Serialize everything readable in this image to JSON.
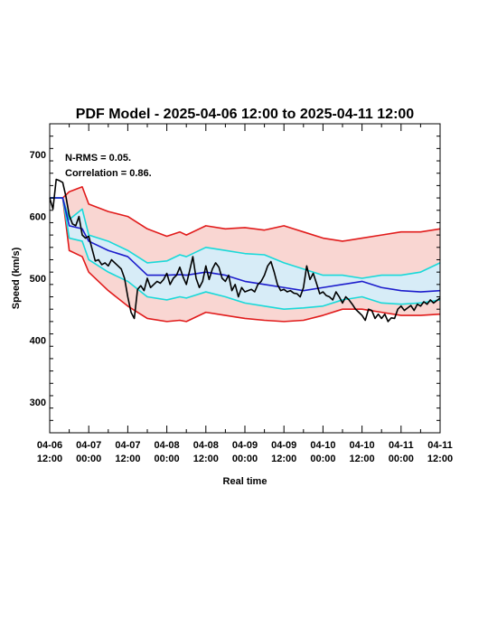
{
  "chart_data": {
    "type": "line",
    "title": "PDF Model - 2025-04-06 12:00 to 2025-04-11 12:00",
    "xlabel": "Real time",
    "ylabel": "Speed (km/s)",
    "annotations": [
      "N-RMS = 0.05.",
      "Correlation = 0.86."
    ],
    "ylim": [
      250,
      750
    ],
    "y_ticks": [
      300,
      400,
      500,
      600,
      700
    ],
    "x_ticks": [
      {
        "l1": "04-06",
        "l2": "12:00"
      },
      {
        "l1": "04-07",
        "l2": "00:00"
      },
      {
        "l1": "04-07",
        "l2": "12:00"
      },
      {
        "l1": "04-08",
        "l2": "00:00"
      },
      {
        "l1": "04-08",
        "l2": "12:00"
      },
      {
        "l1": "04-09",
        "l2": "00:00"
      },
      {
        "l1": "04-09",
        "l2": "12:00"
      },
      {
        "l1": "04-10",
        "l2": "00:00"
      },
      {
        "l1": "04-10",
        "l2": "12:00"
      },
      {
        "l1": "04-11",
        "l2": "00:00"
      },
      {
        "l1": "04-11",
        "l2": "12:00"
      }
    ],
    "x_hours": [
      0,
      4,
      6,
      10,
      12,
      18,
      24,
      30,
      36,
      40,
      42,
      48,
      54,
      60,
      66,
      72,
      78,
      84,
      90,
      96,
      102,
      108,
      114,
      120
    ],
    "upper_band": [
      630,
      630,
      640,
      648,
      620,
      608,
      600,
      580,
      568,
      575,
      570,
      585,
      580,
      582,
      578,
      585,
      575,
      565,
      560,
      565,
      570,
      575,
      575,
      580
    ],
    "upper_mid": [
      630,
      630,
      595,
      612,
      570,
      560,
      545,
      525,
      528,
      538,
      535,
      550,
      545,
      540,
      538,
      525,
      515,
      505,
      505,
      500,
      505,
      505,
      510,
      525
    ],
    "median": [
      630,
      630,
      585,
      580,
      560,
      545,
      535,
      505,
      505,
      506,
      505,
      510,
      505,
      495,
      490,
      485,
      480,
      485,
      490,
      495,
      485,
      480,
      478,
      480
    ],
    "lower_mid": [
      630,
      630,
      565,
      560,
      530,
      510,
      495,
      470,
      465,
      470,
      468,
      478,
      470,
      460,
      455,
      450,
      452,
      455,
      465,
      470,
      460,
      458,
      460,
      465
    ],
    "lower_band": [
      630,
      630,
      545,
      535,
      510,
      480,
      455,
      435,
      430,
      432,
      430,
      445,
      440,
      435,
      432,
      430,
      432,
      440,
      450,
      450,
      445,
      440,
      440,
      442
    ],
    "observed": {
      "x_hours": [
        0,
        1,
        2,
        3,
        4,
        5,
        6,
        7,
        8,
        9,
        10,
        11,
        12,
        13,
        14,
        15,
        16,
        17,
        18,
        19,
        20,
        21,
        22,
        23,
        24,
        25,
        26,
        27,
        28,
        29,
        30,
        31,
        32,
        33,
        34,
        35,
        36,
        37,
        38,
        39,
        40,
        41,
        42,
        43,
        44,
        45,
        46,
        47,
        48,
        49,
        50,
        51,
        52,
        53,
        54,
        55,
        56,
        57,
        58,
        59,
        60,
        61,
        62,
        63,
        64,
        65,
        66,
        67,
        68,
        69,
        70,
        71,
        72,
        73,
        74,
        75,
        76,
        77,
        78,
        79,
        80,
        81,
        82,
        83,
        84,
        85,
        86,
        87,
        88,
        89,
        90,
        91,
        92,
        93,
        94,
        95,
        96,
        97,
        98,
        99,
        100,
        101,
        102,
        103,
        104,
        105,
        106,
        107,
        108,
        109,
        110,
        111,
        112,
        113,
        114,
        115,
        116,
        117,
        118,
        119,
        120
      ],
      "values": [
        630,
        612,
        660,
        658,
        655,
        632,
        602,
        588,
        585,
        600,
        570,
        565,
        568,
        548,
        528,
        530,
        522,
        525,
        520,
        530,
        525,
        520,
        515,
        500,
        470,
        445,
        435,
        482,
        488,
        480,
        500,
        485,
        490,
        495,
        492,
        498,
        508,
        490,
        500,
        505,
        518,
        502,
        490,
        512,
        535,
        500,
        485,
        495,
        520,
        498,
        515,
        525,
        518,
        500,
        495,
        505,
        480,
        490,
        470,
        485,
        478,
        480,
        482,
        478,
        490,
        495,
        505,
        520,
        527,
        510,
        490,
        480,
        482,
        478,
        480,
        476,
        475,
        470,
        485,
        520,
        498,
        508,
        492,
        475,
        478,
        472,
        470,
        465,
        478,
        470,
        460,
        470,
        465,
        458,
        450,
        445,
        440,
        432,
        450,
        448,
        435,
        442,
        435,
        442,
        430,
        436,
        435,
        450,
        455,
        448,
        452,
        456,
        448,
        458,
        455,
        462,
        458,
        465,
        460,
        464,
        468
      ]
    },
    "colors": {
      "outer_fill": "#f9d6d2",
      "inner_fill": "#d7ecf7",
      "outer_line": "#e11b1b",
      "inner_line": "#19d9d9",
      "median_line": "#1c1ccc",
      "observed_line": "#000000"
    },
    "grid": false
  }
}
